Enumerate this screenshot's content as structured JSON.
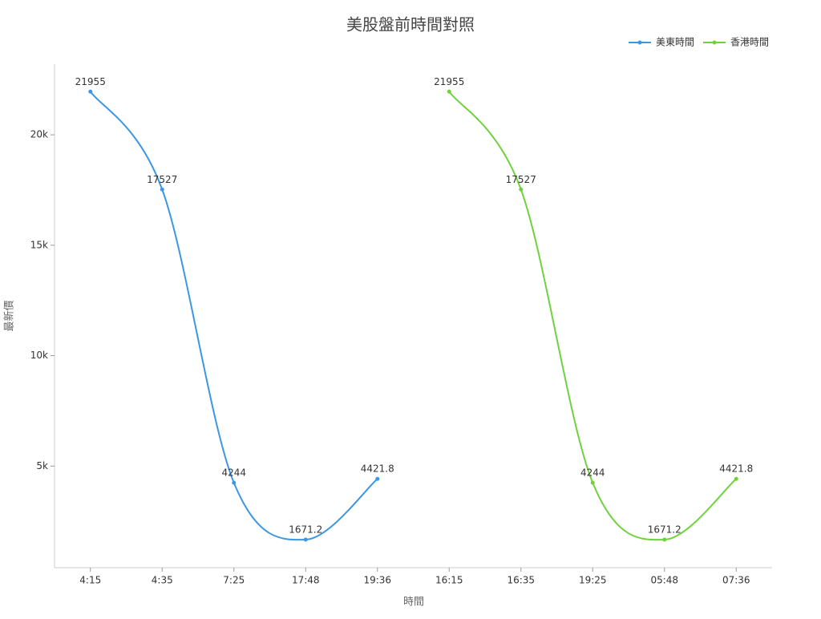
{
  "chart_data": {
    "type": "line",
    "title": "美股盤前時間對照",
    "x_label": "時間",
    "y_label": "最新價",
    "categories": [
      "4:15",
      "4:35",
      "7:25",
      "17:48",
      "19:36",
      "16:15",
      "16:35",
      "19:25",
      "05:48",
      "07:36"
    ],
    "series": [
      {
        "name": "美東時間",
        "color": "#3b97e3",
        "values": [
          21955,
          17527,
          4244,
          1671.2,
          4421.8,
          null,
          null,
          null,
          null,
          null
        ]
      },
      {
        "name": "香港時間",
        "color": "#6fd23c",
        "values": [
          null,
          null,
          null,
          null,
          null,
          21955,
          17527,
          4244,
          1671.2,
          4421.8
        ]
      }
    ],
    "ylim": [
      400,
      23200
    ],
    "yticks": [
      {
        "value": 5000,
        "label": "5k"
      },
      {
        "value": 10000,
        "label": "10k"
      },
      {
        "value": 15000,
        "label": "15k"
      },
      {
        "value": 20000,
        "label": "20k"
      }
    ],
    "legend": "top-right"
  }
}
